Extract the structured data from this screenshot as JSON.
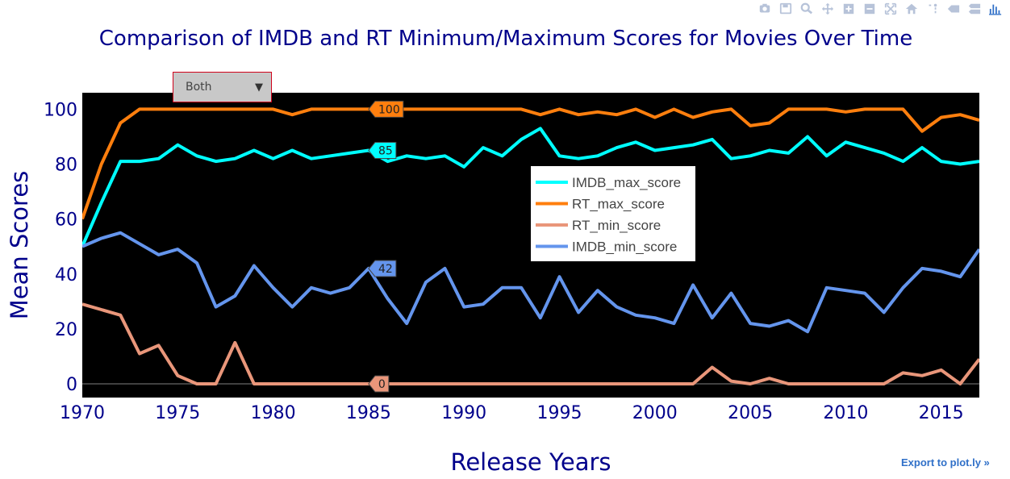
{
  "modebar": {
    "icons": [
      "camera-icon",
      "save-icon",
      "zoom-icon",
      "pan-icon",
      "zoom-in-icon",
      "zoom-out-icon",
      "autoscale-icon",
      "home-icon",
      "spike-icon",
      "hover-closest-icon",
      "hover-compare-icon",
      "plotly-logo-icon"
    ],
    "color": "#b7c3d9"
  },
  "dropdown": {
    "selected": "Both"
  },
  "export_link": "Export to plot.ly »",
  "chart_data": {
    "type": "line",
    "title": "Comparison of IMDB and RT Minimum/Maximum Scores for Movies Over Time",
    "xlabel": "Release Years",
    "ylabel": "Mean Scores",
    "xlim": [
      1970,
      2017
    ],
    "ylim": [
      -5,
      106
    ],
    "xticks": [
      1970,
      1975,
      1980,
      1985,
      1990,
      1995,
      2000,
      2005,
      2010,
      2015
    ],
    "yticks": [
      0,
      20,
      40,
      60,
      80,
      100
    ],
    "grid": false,
    "plot_bgcolor": "#000000",
    "legend_position": "center-right",
    "x": [
      1970,
      1971,
      1972,
      1973,
      1974,
      1975,
      1976,
      1977,
      1978,
      1979,
      1980,
      1981,
      1982,
      1983,
      1984,
      1985,
      1986,
      1987,
      1988,
      1989,
      1990,
      1991,
      1992,
      1993,
      1994,
      1995,
      1996,
      1997,
      1998,
      1999,
      2000,
      2001,
      2002,
      2003,
      2004,
      2005,
      2006,
      2007,
      2008,
      2009,
      2010,
      2011,
      2012,
      2013,
      2014,
      2015,
      2016,
      2017
    ],
    "series": [
      {
        "name": "IMDB_max_score",
        "color": "#00ffff",
        "values": [
          50,
          66,
          81,
          81,
          82,
          87,
          83,
          81,
          82,
          85,
          82,
          85,
          82,
          83,
          84,
          85,
          81,
          83,
          82,
          83,
          79,
          86,
          83,
          89,
          93,
          83,
          82,
          83,
          86,
          88,
          85,
          86,
          87,
          89,
          82,
          83,
          85,
          84,
          90,
          83,
          88,
          86,
          84,
          81,
          86,
          81,
          80,
          81
        ]
      },
      {
        "name": "RT_max_score",
        "color": "#ff7f0e",
        "values": [
          60,
          80,
          95,
          100,
          100,
          100,
          100,
          100,
          100,
          100,
          100,
          98,
          100,
          100,
          100,
          100,
          100,
          100,
          100,
          100,
          100,
          100,
          100,
          100,
          98,
          100,
          98,
          99,
          98,
          100,
          97,
          100,
          97,
          99,
          100,
          94,
          95,
          100,
          100,
          100,
          99,
          100,
          100,
          100,
          92,
          97,
          98,
          96
        ]
      },
      {
        "name": "RT_min_score",
        "color": "#e9967a",
        "values": [
          29,
          27,
          25,
          11,
          14,
          3,
          0,
          0,
          15,
          0,
          0,
          0,
          0,
          0,
          0,
          0,
          0,
          0,
          0,
          0,
          0,
          0,
          0,
          0,
          0,
          0,
          0,
          0,
          0,
          0,
          0,
          0,
          0,
          6,
          1,
          0,
          2,
          0,
          0,
          0,
          0,
          0,
          0,
          4,
          3,
          5,
          0,
          9
        ]
      },
      {
        "name": "IMDB_min_score",
        "color": "#6495ed",
        "values": [
          50,
          53,
          55,
          51,
          47,
          49,
          44,
          28,
          32,
          43,
          35,
          28,
          35,
          33,
          35,
          42,
          31,
          22,
          37,
          42,
          28,
          29,
          35,
          35,
          24,
          39,
          26,
          34,
          28,
          25,
          24,
          22,
          36,
          24,
          33,
          22,
          21,
          23,
          19,
          35,
          34,
          33,
          26,
          35,
          42,
          41,
          39,
          49
        ]
      }
    ],
    "hover_labels": [
      {
        "series": "RT_max_score",
        "x": 1985,
        "text": "100"
      },
      {
        "series": "IMDB_max_score",
        "x": 1985,
        "text": "85"
      },
      {
        "series": "IMDB_min_score",
        "x": 1985,
        "text": "42"
      },
      {
        "series": "RT_min_score",
        "x": 1985,
        "text": "0"
      }
    ]
  }
}
